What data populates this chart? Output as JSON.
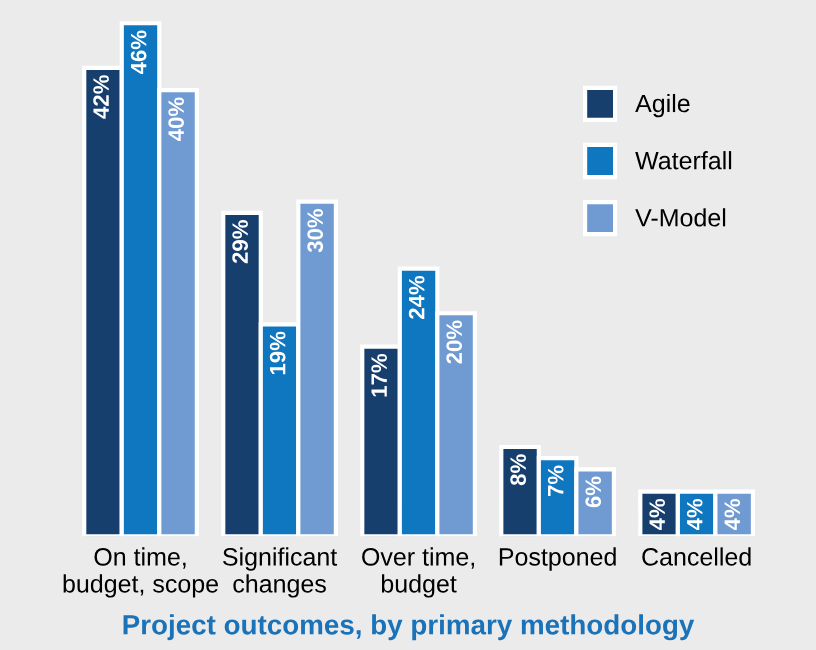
{
  "chart_data": {
    "type": "bar",
    "title": "Project outcomes, by primary methodology",
    "categories": [
      "On time,\nbudget, scope",
      "Significant\nchanges",
      "Over time,\nbudget",
      "Postponed",
      "Cancelled"
    ],
    "series": [
      {
        "name": "Agile",
        "color": "#173f6e",
        "values": [
          42,
          29,
          17,
          8,
          4
        ],
        "value_labels": [
          "42%",
          "29%",
          "17%",
          "8%",
          "4%"
        ]
      },
      {
        "name": "Waterfall",
        "color": "#0f77c0",
        "values": [
          46,
          19,
          24,
          7,
          4
        ],
        "value_labels": [
          "46%",
          "19%",
          "24%",
          "7%",
          "4%"
        ]
      },
      {
        "name": "V-Model",
        "color": "#6f9bd2",
        "values": [
          40,
          30,
          20,
          6,
          4
        ],
        "value_labels": [
          "40%",
          "30%",
          "20%",
          "6%",
          "4%"
        ]
      }
    ],
    "legend": "top right",
    "grid": false
  }
}
